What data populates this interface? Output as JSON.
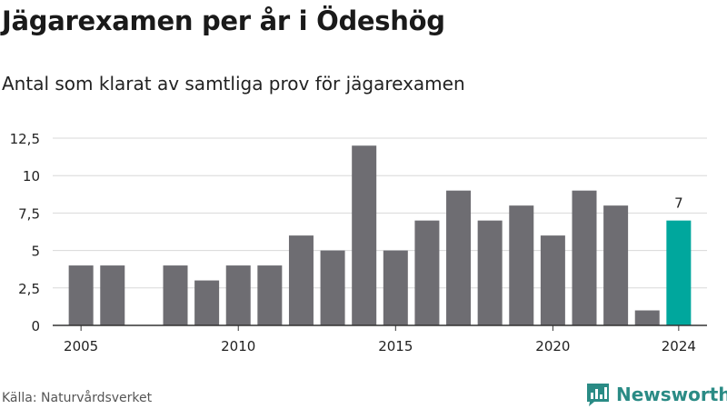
{
  "header": {
    "title": "Jägarexamen per år i Ödeshög",
    "subtitle": "Antal som klarat av samtliga prov för jägarexamen"
  },
  "footer": {
    "source": "Källa: Naturvårdsverket",
    "brand": "Newsworthy",
    "brand_icon": "bar-chart-speech-bubble-icon"
  },
  "colors": {
    "bar": "#6e6d72",
    "highlight": "#00a79d",
    "grid": "#d8d8d8",
    "axis": "#333333",
    "brand": "#2a8b85"
  },
  "chart_data": {
    "type": "bar",
    "title": "Jägarexamen per år i Ödeshög",
    "subtitle": "Antal som klarat av samtliga prov för jägarexamen",
    "x": [
      2005,
      2006,
      2007,
      2008,
      2009,
      2010,
      2011,
      2012,
      2013,
      2014,
      2015,
      2016,
      2017,
      2018,
      2019,
      2020,
      2021,
      2022,
      2023,
      2024
    ],
    "values": [
      4,
      4,
      0,
      4,
      3,
      4,
      4,
      6,
      5,
      12,
      5,
      7,
      9,
      7,
      8,
      6,
      9,
      8,
      1,
      7
    ],
    "highlight_index": 19,
    "highlight_label": "7",
    "ylim": [
      0,
      12.5
    ],
    "yticks": [
      0,
      2.5,
      5,
      7.5,
      10,
      12.5
    ],
    "ytick_labels": [
      "0",
      "2,5",
      "5",
      "7,5",
      "10",
      "12,5"
    ],
    "xticks": [
      2005,
      2010,
      2015,
      2020,
      2024
    ],
    "xtick_labels": [
      "2005",
      "2010",
      "2015",
      "2020",
      "2024"
    ],
    "grid": true,
    "legend": "none"
  }
}
